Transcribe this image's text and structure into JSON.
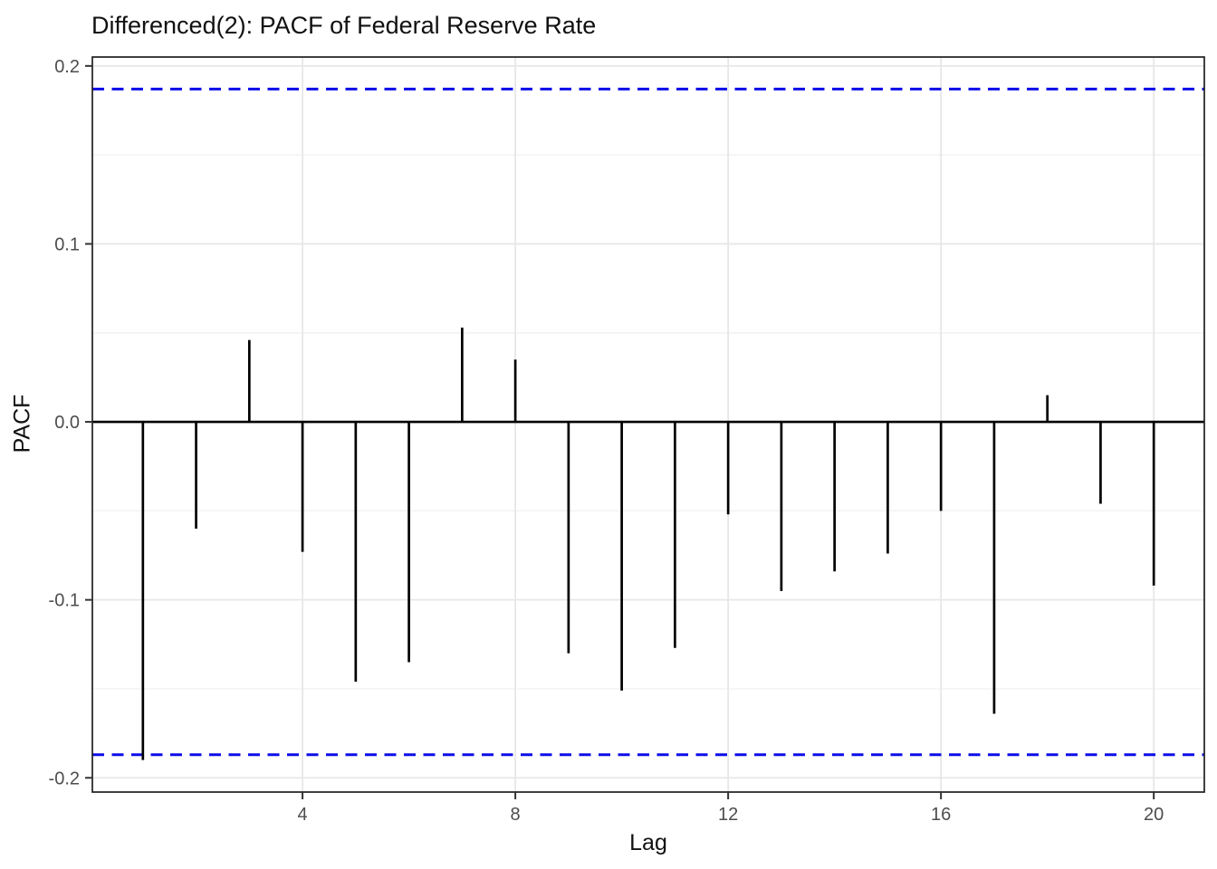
{
  "chart": {
    "title": "Differenced(2): PACF of Federal Reserve Rate",
    "x_axis_label": "Lag",
    "y_axis_label": "PACF"
  },
  "chart_data": {
    "type": "bar",
    "subtype": "pacf-lollipop",
    "title": "Differenced(2): PACF of Federal Reserve Rate",
    "xlabel": "Lag",
    "ylabel": "PACF",
    "x": [
      1,
      2,
      3,
      4,
      5,
      6,
      7,
      8,
      9,
      10,
      11,
      12,
      13,
      14,
      15,
      16,
      17,
      18,
      19,
      20
    ],
    "values": [
      -0.19,
      -0.06,
      0.046,
      -0.073,
      -0.146,
      -0.135,
      0.053,
      0.035,
      -0.13,
      -0.151,
      -0.127,
      -0.052,
      -0.095,
      -0.084,
      -0.074,
      -0.05,
      -0.164,
      0.015,
      -0.046,
      -0.092
    ],
    "confidence_upper": 0.187,
    "confidence_lower": -0.187,
    "confidence_line_style": "dashed",
    "xlim": [
      0.05,
      20.95
    ],
    "ylim": [
      -0.208,
      0.205
    ],
    "x_ticks": [
      4,
      8,
      12,
      16,
      20
    ],
    "x_tick_labels": [
      "4",
      "8",
      "12",
      "16",
      "20"
    ],
    "y_ticks": [
      0.2,
      0.1,
      0.0,
      -0.1,
      -0.2
    ],
    "y_tick_labels": [
      "0.2",
      "0.1",
      "0.0",
      "-0.1",
      "-0.2"
    ],
    "y_minor_gridlines": [
      0.15,
      0.05,
      -0.05,
      -0.15
    ],
    "grid": "horizontal major+minor, vertical major only",
    "legend": "none",
    "zero_line": 0.0,
    "colors": {
      "bar": "#000000",
      "zero_line": "#000000",
      "confidence_line": "#0d0de8",
      "major_grid": "#e7e7e7",
      "minor_grid": "#f2f2f2",
      "tick_label": "#4d4d4d",
      "axis_title": "#111111",
      "panel_border": "#1f1f1f",
      "tick_mark": "#333333",
      "background": "#ffffff"
    }
  },
  "layout_note": "statistical plot, no interactive controls visible"
}
